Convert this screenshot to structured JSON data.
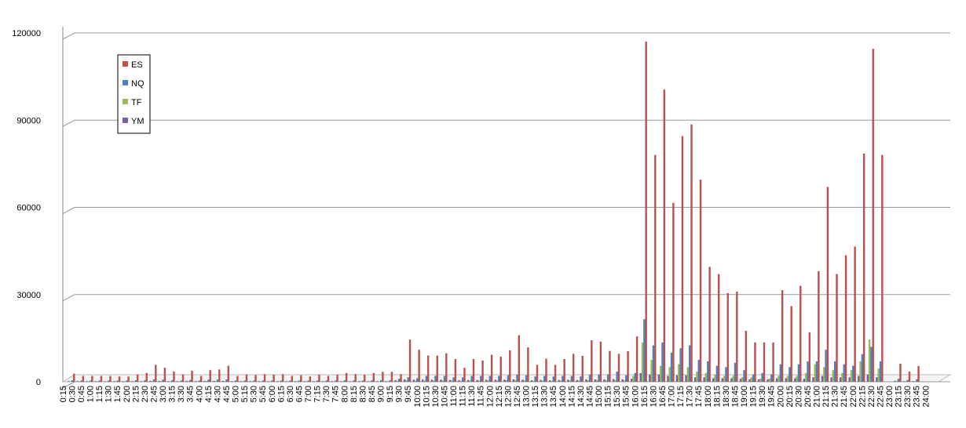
{
  "chart_data": {
    "type": "bar",
    "categories": [
      "0:15",
      "0:30",
      "0:45",
      "1:00",
      "1:15",
      "1:30",
      "1:45",
      "2:00",
      "2:15",
      "2:30",
      "2:45",
      "3:00",
      "3:15",
      "3:30",
      "3:45",
      "4:00",
      "4:15",
      "4:30",
      "4:45",
      "5:00",
      "5:15",
      "5:30",
      "5:45",
      "6:00",
      "6:15",
      "6:30",
      "6:45",
      "7:00",
      "7:15",
      "7:30",
      "7:45",
      "8:00",
      "8:15",
      "8:30",
      "8:45",
      "9:00",
      "9:15",
      "9:30",
      "9:45",
      "10:00",
      "10:15",
      "10:30",
      "10:45",
      "11:00",
      "11:15",
      "11:30",
      "11:45",
      "12:00",
      "12:15",
      "12:30",
      "12:45",
      "13:00",
      "13:15",
      "13:30",
      "13:45",
      "14:00",
      "14:15",
      "14:30",
      "14:45",
      "15:00",
      "15:15",
      "15:30",
      "15:45",
      "16:00",
      "16:15",
      "16:30",
      "16:45",
      "17:00",
      "17:15",
      "17:30",
      "17:45",
      "18:00",
      "18:15",
      "18:30",
      "18:45",
      "19:00",
      "19:15",
      "19:30",
      "19:45",
      "20:00",
      "20:15",
      "20:30",
      "20:45",
      "21:00",
      "21:15",
      "21:30",
      "21:45",
      "22:00",
      "22:15",
      "22:30",
      "22:45",
      "23:00",
      "23:15",
      "23:30",
      "23:45",
      "24:00"
    ],
    "series": [
      {
        "name": "YM",
        "color": "#7d60a0",
        "values": [
          200,
          200,
          200,
          200,
          200,
          200,
          200,
          200,
          200,
          300,
          300,
          200,
          200,
          300,
          200,
          300,
          300,
          300,
          200,
          200,
          200,
          200,
          200,
          200,
          200,
          200,
          200,
          200,
          200,
          200,
          200,
          200,
          200,
          200,
          200,
          200,
          500,
          800,
          700,
          700,
          700,
          700,
          600,
          500,
          600,
          600,
          700,
          700,
          700,
          800,
          700,
          500,
          600,
          500,
          600,
          700,
          600,
          800,
          800,
          800,
          900,
          800,
          1000,
          3000,
          2500,
          2500,
          2000,
          2200,
          2200,
          1500,
          1500,
          1200,
          1200,
          1200,
          1000,
          800,
          800,
          800,
          1200,
          1200,
          1200,
          1000,
          1500,
          2000,
          1500,
          1500,
          1500,
          2000,
          2500,
          1500,
          0,
          300,
          200,
          200,
          0,
          0
        ]
      },
      {
        "name": "TF",
        "color": "#9bbb59",
        "values": [
          100,
          100,
          100,
          100,
          100,
          100,
          100,
          100,
          100,
          200,
          200,
          100,
          100,
          200,
          100,
          200,
          200,
          200,
          100,
          100,
          100,
          100,
          100,
          100,
          100,
          100,
          100,
          100,
          100,
          100,
          100,
          100,
          100,
          100,
          100,
          100,
          300,
          500,
          400,
          400,
          400,
          400,
          400,
          300,
          400,
          400,
          400,
          400,
          500,
          500,
          400,
          300,
          400,
          300,
          400,
          400,
          400,
          500,
          500,
          500,
          600,
          500,
          2000,
          13500,
          7500,
          5500,
          5000,
          6000,
          5000,
          3500,
          3000,
          2500,
          2000,
          2000,
          1500,
          1500,
          1000,
          1000,
          2000,
          2000,
          2000,
          3000,
          6000,
          5000,
          4000,
          3000,
          4000,
          7000,
          14500,
          4500,
          0,
          300,
          200,
          200,
          0,
          0
        ]
      },
      {
        "name": "NQ",
        "color": "#4f81bd",
        "values": [
          500,
          400,
          400,
          400,
          400,
          400,
          400,
          500,
          500,
          800,
          700,
          500,
          400,
          600,
          400,
          700,
          700,
          800,
          400,
          400,
          400,
          400,
          400,
          400,
          400,
          400,
          400,
          400,
          400,
          400,
          500,
          400,
          400,
          500,
          500,
          500,
          1000,
          1500,
          1200,
          2000,
          2000,
          2000,
          1500,
          1500,
          2000,
          2000,
          2000,
          2000,
          2200,
          2500,
          2200,
          1800,
          2000,
          1800,
          2000,
          2000,
          1800,
          2500,
          2500,
          2500,
          3500,
          2200,
          3000,
          21500,
          12500,
          13500,
          10000,
          11500,
          12500,
          7500,
          7000,
          5500,
          5000,
          6500,
          4000,
          2500,
          3000,
          2500,
          6000,
          5000,
          6000,
          7000,
          7000,
          11000,
          7000,
          6000,
          5500,
          9500,
          12000,
          7000,
          0,
          1000,
          600,
          800,
          0,
          0
        ]
      },
      {
        "name": "ES",
        "color": "#c0504d",
        "values": [
          2800,
          2000,
          2000,
          2000,
          2000,
          1800,
          1800,
          2500,
          3000,
          5800,
          4800,
          3500,
          2500,
          3800,
          2000,
          4000,
          4200,
          5500,
          2000,
          2500,
          2300,
          2600,
          2400,
          2600,
          2000,
          2200,
          1800,
          2400,
          2000,
          2400,
          3000,
          2600,
          2400,
          3000,
          3400,
          3400,
          2600,
          14500,
          11000,
          9000,
          9000,
          9800,
          7800,
          4800,
          7800,
          7300,
          9300,
          8600,
          10800,
          16000,
          11800,
          5800,
          7900,
          5800,
          7800,
          9600,
          8900,
          14300,
          13800,
          10600,
          9600,
          10500,
          15600,
          117000,
          78000,
          100500,
          61500,
          84500,
          88500,
          69500,
          39500,
          37000,
          30500,
          31000,
          17500,
          13500,
          13500,
          13500,
          31500,
          26000,
          33000,
          17000,
          38000,
          67000,
          37000,
          43500,
          46500,
          78500,
          114500,
          78000,
          0,
          6200,
          3500,
          5400,
          0,
          0
        ]
      }
    ],
    "ylim": [
      0,
      120000
    ],
    "yticks": [
      0,
      30000,
      60000,
      90000,
      120000
    ],
    "grid": true,
    "legend": "top-left"
  }
}
